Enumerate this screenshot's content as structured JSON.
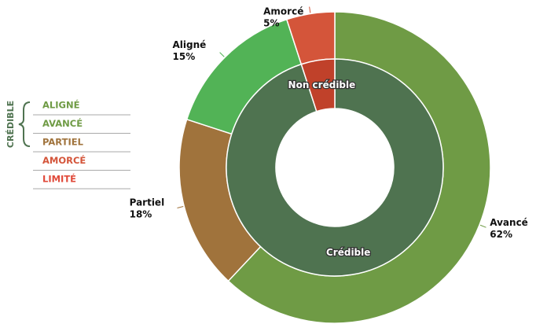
{
  "chart_data": {
    "type": "nested-donut",
    "outer": {
      "categories": [
        "Avancé",
        "Partiel",
        "Aligné",
        "Amorcé"
      ],
      "values": [
        62,
        18,
        15,
        5
      ],
      "value_labels": [
        "62%",
        "18%",
        "15%",
        "5%"
      ],
      "colors": [
        "#6f9b45",
        "#a0733c",
        "#52b356",
        "#d4553a"
      ]
    },
    "inner": {
      "categories": [
        "Crédible",
        "Non crédible"
      ],
      "values": [
        95,
        5
      ],
      "colors": [
        "#4f7350",
        "#c0412a"
      ]
    },
    "legend": {
      "group": "CRÉDIBLE",
      "items": [
        "ALIGNÉ",
        "AVANCÉ",
        "PARTIEL",
        "AMORCÉ",
        "LIMITÉ"
      ],
      "colors": [
        "#6f9b45",
        "#6f9b45",
        "#a0733c",
        "#d4553a",
        "#e04a3a"
      ]
    }
  }
}
